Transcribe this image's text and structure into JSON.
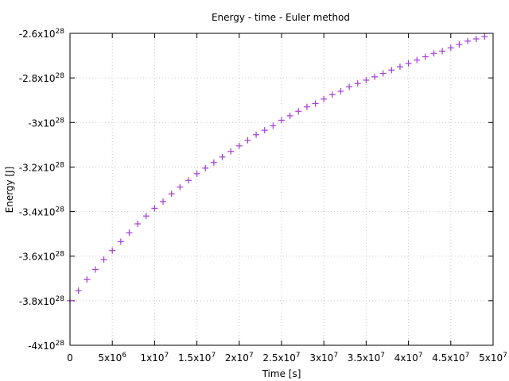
{
  "chart_data": {
    "type": "scatter",
    "title": "Energy - time - Euler method",
    "xlabel": "Time [s]",
    "ylabel": "Energy [J]",
    "xlim": [
      0,
      50000000
    ],
    "ylim": [
      -4e+28,
      -2.6e+28
    ],
    "grid": true,
    "legend": "none",
    "marker": "+",
    "color": "#a63dd6",
    "x_ticks": [
      {
        "value": 0,
        "base": "0",
        "exp": ""
      },
      {
        "value": 5000000,
        "base": "5x10",
        "exp": "6"
      },
      {
        "value": 10000000,
        "base": "1x10",
        "exp": "7"
      },
      {
        "value": 15000000,
        "base": "1.5x10",
        "exp": "7"
      },
      {
        "value": 20000000,
        "base": "2x10",
        "exp": "7"
      },
      {
        "value": 25000000,
        "base": "2.5x10",
        "exp": "7"
      },
      {
        "value": 30000000,
        "base": "3x10",
        "exp": "7"
      },
      {
        "value": 35000000,
        "base": "3.5x10",
        "exp": "7"
      },
      {
        "value": 40000000,
        "base": "4x10",
        "exp": "7"
      },
      {
        "value": 45000000,
        "base": "4.5x10",
        "exp": "7"
      },
      {
        "value": 50000000,
        "base": "5x10",
        "exp": "7"
      }
    ],
    "y_ticks": [
      {
        "value": -2.6e+28,
        "base": "-2.6x10",
        "exp": "28"
      },
      {
        "value": -2.8e+28,
        "base": "-2.8x10",
        "exp": "28"
      },
      {
        "value": -3e+28,
        "base": "-3x10",
        "exp": "28"
      },
      {
        "value": -3.2e+28,
        "base": "-3.2x10",
        "exp": "28"
      },
      {
        "value": -3.4e+28,
        "base": "-3.4x10",
        "exp": "28"
      },
      {
        "value": -3.6e+28,
        "base": "-3.6x10",
        "exp": "28"
      },
      {
        "value": -3.8e+28,
        "base": "-3.8x10",
        "exp": "28"
      },
      {
        "value": -4e+28,
        "base": "-4x10",
        "exp": "28"
      }
    ],
    "x": [
      0,
      1000000,
      2000000,
      3000000,
      4000000,
      5000000,
      6000000,
      7000000,
      8000000,
      9000000,
      10000000,
      11000000,
      12000000,
      13000000,
      14000000,
      15000000,
      16000000,
      17000000,
      18000000,
      19000000,
      20000000,
      21000000,
      22000000,
      23000000,
      24000000,
      25000000,
      26000000,
      27000000,
      28000000,
      29000000,
      30000000,
      31000000,
      32000000,
      33000000,
      34000000,
      35000000,
      36000000,
      37000000,
      38000000,
      39000000,
      40000000,
      41000000,
      42000000,
      43000000,
      44000000,
      45000000,
      46000000,
      47000000,
      48000000,
      49000000
    ],
    "y": [
      -3.8e+28,
      -3.755e+28,
      -3.705e+28,
      -3.66e+28,
      -3.615e+28,
      -3.575e+28,
      -3.535e+28,
      -3.495e+28,
      -3.455e+28,
      -3.42e+28,
      -3.385e+28,
      -3.355e+28,
      -3.32e+28,
      -3.29e+28,
      -3.26e+28,
      -3.23e+28,
      -3.205e+28,
      -3.18e+28,
      -3.155e+28,
      -3.13e+28,
      -3.105e+28,
      -3.08e+28,
      -3.055e+28,
      -3.035e+28,
      -3.015e+28,
      -2.99e+28,
      -2.97e+28,
      -2.95e+28,
      -2.93e+28,
      -2.915e+28,
      -2.895e+28,
      -2.875e+28,
      -2.86e+28,
      -2.84e+28,
      -2.825e+28,
      -2.81e+28,
      -2.795e+28,
      -2.78e+28,
      -2.765e+28,
      -2.75e+28,
      -2.735e+28,
      -2.72e+28,
      -2.705e+28,
      -2.69e+28,
      -2.68e+28,
      -2.665e+28,
      -2.65e+28,
      -2.635e+28,
      -2.625e+28,
      -2.615e+28
    ]
  }
}
